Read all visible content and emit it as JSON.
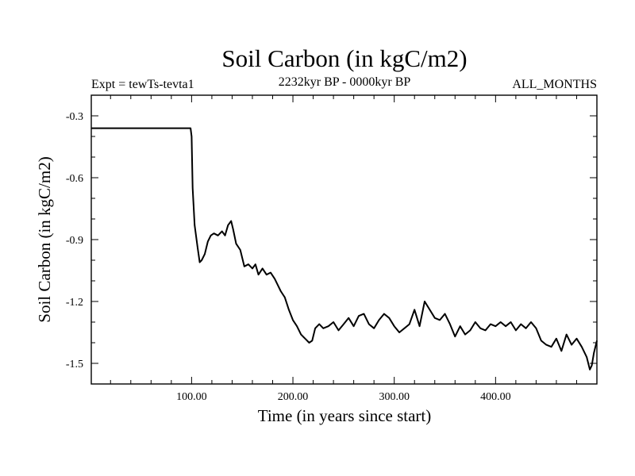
{
  "chart_data": {
    "type": "line",
    "title": "Soil Carbon (in kgC/m2)",
    "subtitle_left": "Expt = tewTs-tevta1",
    "subtitle_center": "2232kyr BP - 0000kyr BP",
    "subtitle_right": "ALL_MONTHS",
    "xlabel": "Time (in years since start)",
    "ylabel": "Soil Carbon (in kgC/m2)",
    "xlim": [
      1,
      500
    ],
    "ylim": [
      -1.6,
      -0.2
    ],
    "xticks": [
      100,
      200,
      300,
      400
    ],
    "xtick_labels": [
      "100.00",
      "200.00",
      "300.00",
      "400.00"
    ],
    "yticks": [
      -0.3,
      -0.6,
      -0.9,
      -1.2,
      -1.5
    ],
    "ytick_labels": [
      "-0.3",
      "-0.6",
      "-0.9",
      "-1.2",
      "-1.5"
    ],
    "grid": false,
    "series": [
      {
        "name": "Soil Carbon",
        "color": "#000000",
        "x": [
          1,
          99,
          100,
          101,
          103,
          106,
          108,
          110,
          113,
          116,
          119,
          122,
          126,
          130,
          133,
          136,
          139,
          141,
          144,
          148,
          152,
          156,
          160,
          163,
          166,
          170,
          174,
          178,
          182,
          185,
          188,
          192,
          196,
          200,
          204,
          208,
          212,
          216,
          219,
          222,
          226,
          230,
          235,
          240,
          245,
          250,
          255,
          260,
          265,
          270,
          275,
          280,
          285,
          290,
          295,
          300,
          305,
          310,
          315,
          320,
          325,
          330,
          335,
          340,
          345,
          350,
          355,
          360,
          365,
          370,
          375,
          380,
          385,
          390,
          395,
          400,
          405,
          410,
          415,
          420,
          425,
          430,
          435,
          440,
          445,
          450,
          455,
          460,
          465,
          470,
          475,
          480,
          485,
          490,
          493,
          495,
          497,
          500
        ],
        "y": [
          -0.36,
          -0.36,
          -0.4,
          -0.65,
          -0.83,
          -0.94,
          -1.01,
          -1.0,
          -0.97,
          -0.91,
          -0.88,
          -0.87,
          -0.88,
          -0.86,
          -0.88,
          -0.83,
          -0.81,
          -0.85,
          -0.92,
          -0.95,
          -1.03,
          -1.02,
          -1.04,
          -1.02,
          -1.07,
          -1.04,
          -1.07,
          -1.06,
          -1.09,
          -1.12,
          -1.15,
          -1.18,
          -1.24,
          -1.29,
          -1.32,
          -1.36,
          -1.38,
          -1.4,
          -1.39,
          -1.33,
          -1.31,
          -1.33,
          -1.32,
          -1.3,
          -1.34,
          -1.31,
          -1.28,
          -1.32,
          -1.27,
          -1.26,
          -1.31,
          -1.33,
          -1.29,
          -1.26,
          -1.28,
          -1.32,
          -1.35,
          -1.33,
          -1.31,
          -1.24,
          -1.32,
          -1.2,
          -1.24,
          -1.28,
          -1.29,
          -1.26,
          -1.31,
          -1.37,
          -1.32,
          -1.36,
          -1.34,
          -1.3,
          -1.33,
          -1.34,
          -1.31,
          -1.32,
          -1.3,
          -1.32,
          -1.3,
          -1.34,
          -1.31,
          -1.33,
          -1.3,
          -1.33,
          -1.39,
          -1.41,
          -1.42,
          -1.38,
          -1.44,
          -1.36,
          -1.41,
          -1.38,
          -1.42,
          -1.47,
          -1.53,
          -1.51,
          -1.45,
          -1.39
        ]
      }
    ]
  }
}
